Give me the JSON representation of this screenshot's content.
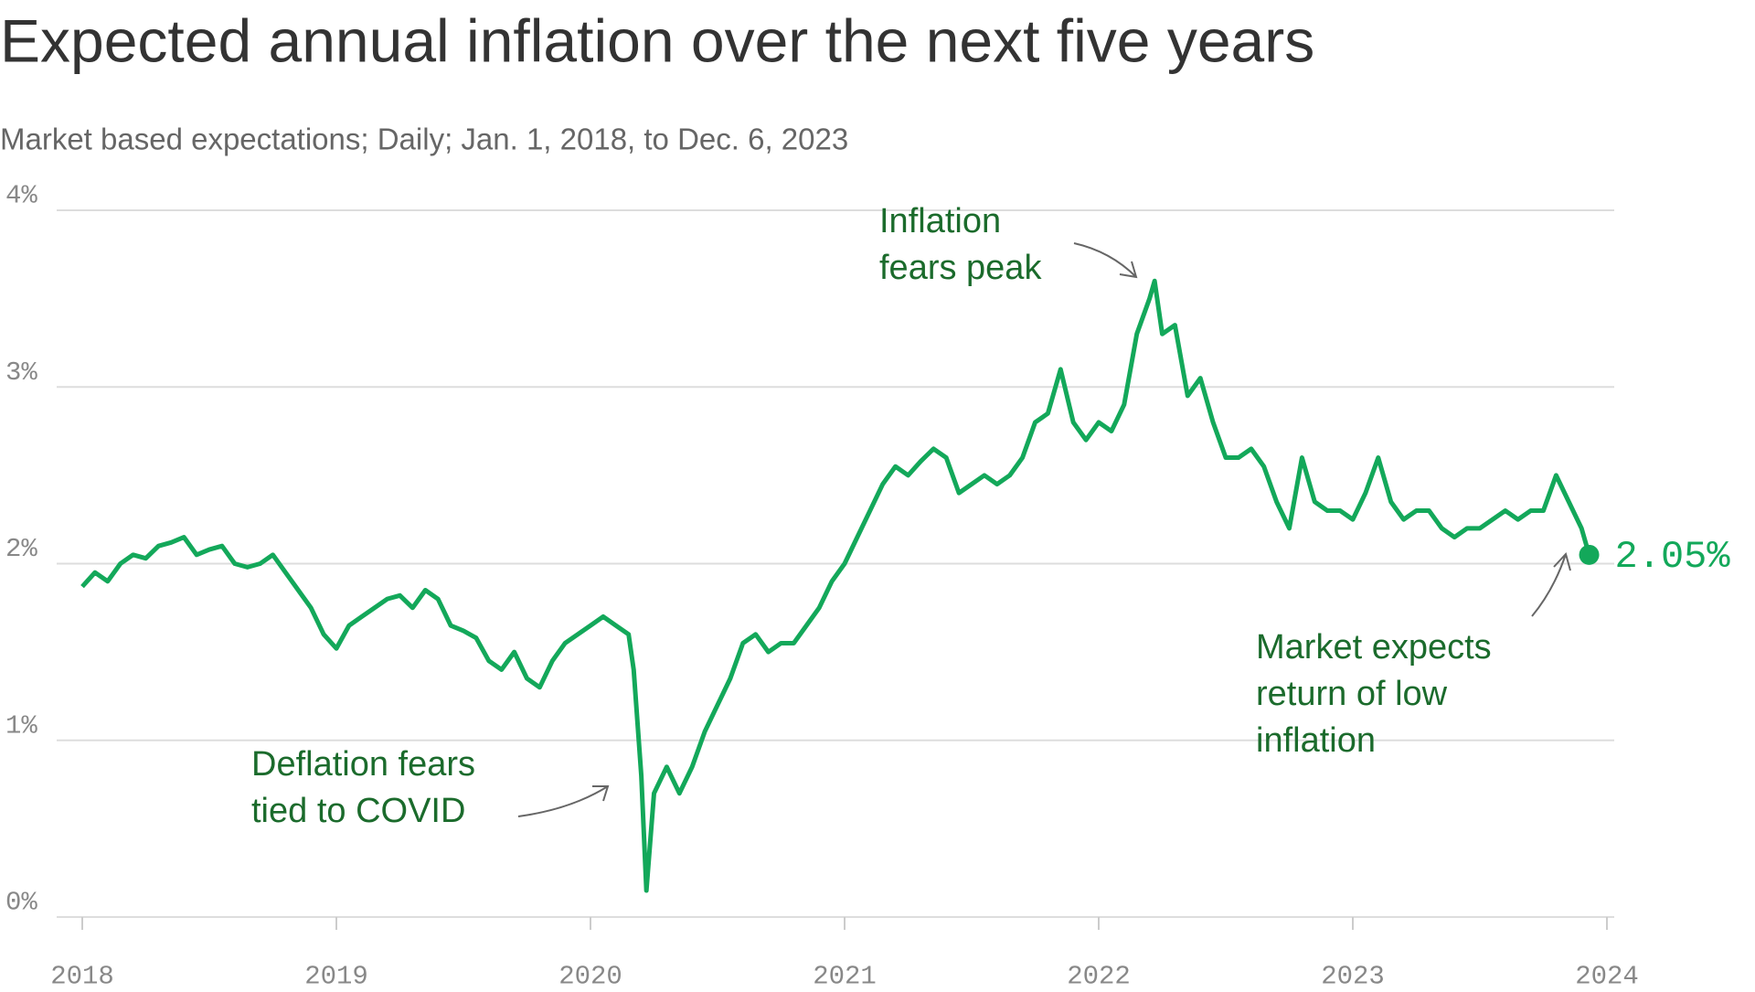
{
  "chart_data": {
    "type": "line",
    "title": "Expected annual inflation over the next five years",
    "subtitle": "Market based expectations; Daily; Jan. 1, 2018, to Dec. 6, 2023",
    "x": [
      2018.0,
      2018.05,
      2018.1,
      2018.15,
      2018.2,
      2018.25,
      2018.3,
      2018.35,
      2018.4,
      2018.45,
      2018.5,
      2018.55,
      2018.6,
      2018.65,
      2018.7,
      2018.75,
      2018.8,
      2018.85,
      2018.9,
      2018.95,
      2019.0,
      2019.05,
      2019.1,
      2019.15,
      2019.2,
      2019.25,
      2019.3,
      2019.35,
      2019.4,
      2019.45,
      2019.5,
      2019.55,
      2019.6,
      2019.65,
      2019.7,
      2019.75,
      2019.8,
      2019.85,
      2019.9,
      2019.95,
      2020.0,
      2020.05,
      2020.1,
      2020.15,
      2020.17,
      2020.2,
      2020.22,
      2020.25,
      2020.3,
      2020.35,
      2020.4,
      2020.45,
      2020.5,
      2020.55,
      2020.6,
      2020.65,
      2020.7,
      2020.75,
      2020.8,
      2020.85,
      2020.9,
      2020.95,
      2021.0,
      2021.05,
      2021.1,
      2021.15,
      2021.2,
      2021.25,
      2021.3,
      2021.35,
      2021.4,
      2021.45,
      2021.5,
      2021.55,
      2021.6,
      2021.65,
      2021.7,
      2021.75,
      2021.8,
      2021.85,
      2021.9,
      2021.95,
      2022.0,
      2022.05,
      2022.1,
      2022.15,
      2022.2,
      2022.22,
      2022.25,
      2022.3,
      2022.35,
      2022.4,
      2022.45,
      2022.5,
      2022.55,
      2022.6,
      2022.65,
      2022.7,
      2022.75,
      2022.8,
      2022.85,
      2022.9,
      2022.95,
      2023.0,
      2023.05,
      2023.1,
      2023.15,
      2023.2,
      2023.25,
      2023.3,
      2023.35,
      2023.4,
      2023.45,
      2023.5,
      2023.55,
      2023.6,
      2023.65,
      2023.7,
      2023.75,
      2023.8,
      2023.85,
      2023.9,
      2023.93
    ],
    "series": [
      {
        "color": "#13a85a",
        "last_value_label": "2.05%",
        "values": [
          1.87,
          1.95,
          1.9,
          2.0,
          2.05,
          2.03,
          2.1,
          2.12,
          2.15,
          2.05,
          2.08,
          2.1,
          2.0,
          1.98,
          2.0,
          2.05,
          1.95,
          1.85,
          1.75,
          1.6,
          1.52,
          1.65,
          1.7,
          1.75,
          1.8,
          1.82,
          1.75,
          1.85,
          1.8,
          1.65,
          1.62,
          1.58,
          1.45,
          1.4,
          1.5,
          1.35,
          1.3,
          1.45,
          1.55,
          1.6,
          1.65,
          1.7,
          1.65,
          1.6,
          1.4,
          0.8,
          0.15,
          0.7,
          0.85,
          0.7,
          0.85,
          1.05,
          1.2,
          1.35,
          1.55,
          1.6,
          1.5,
          1.55,
          1.55,
          1.65,
          1.75,
          1.9,
          2.0,
          2.15,
          2.3,
          2.45,
          2.55,
          2.5,
          2.58,
          2.65,
          2.6,
          2.4,
          2.45,
          2.5,
          2.45,
          2.5,
          2.6,
          2.8,
          2.85,
          3.1,
          2.8,
          2.7,
          2.8,
          2.75,
          2.9,
          3.3,
          3.5,
          3.6,
          3.3,
          3.35,
          2.95,
          3.05,
          2.8,
          2.6,
          2.6,
          2.65,
          2.55,
          2.35,
          2.2,
          2.6,
          2.35,
          2.3,
          2.3,
          2.25,
          2.4,
          2.6,
          2.35,
          2.25,
          2.3,
          2.3,
          2.2,
          2.15,
          2.2,
          2.2,
          2.25,
          2.3,
          2.25,
          2.3,
          2.3,
          2.5,
          2.35,
          2.2,
          2.05
        ]
      }
    ],
    "xlim": [
      2018,
      2024
    ],
    "xticks": [
      2018,
      2019,
      2020,
      2021,
      2022,
      2023,
      2024
    ],
    "ylim": [
      0,
      4
    ],
    "yticks": [
      {
        "value": 0,
        "label": "0%"
      },
      {
        "value": 1,
        "label": "1%"
      },
      {
        "value": 2,
        "label": "2%"
      },
      {
        "value": 3,
        "label": "3%"
      },
      {
        "value": 4,
        "label": "4%"
      }
    ],
    "grid": true,
    "annotations": [
      {
        "lines": [
          "Inflation",
          "fears peak"
        ]
      },
      {
        "lines": [
          "Deflation fears",
          "tied to COVID"
        ]
      },
      {
        "lines": [
          "Market expects",
          "return of low",
          "inflation"
        ]
      }
    ]
  }
}
